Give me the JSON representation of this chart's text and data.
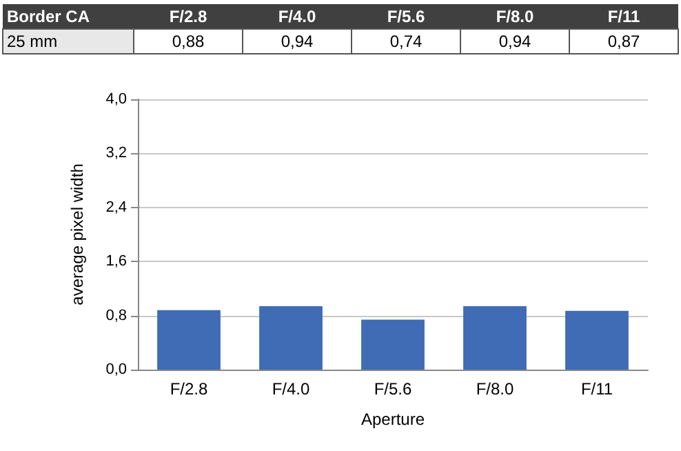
{
  "chart_data": {
    "type": "bar",
    "title": "Border CA",
    "subtitle": "25 mm",
    "xlabel": "Aperture",
    "ylabel": "average pixel width",
    "categories": [
      "F/2.8",
      "F/4.0",
      "F/5.6",
      "F/8.0",
      "F/11"
    ],
    "values": [
      0.88,
      0.94,
      0.74,
      0.94,
      0.87
    ],
    "value_labels": [
      "0,88",
      "0,94",
      "0,74",
      "0,94",
      "0,87"
    ],
    "color": "#3f6cb4",
    "ylim": [
      0,
      4
    ],
    "yticks": [
      {
        "value": 0,
        "label": "0,0"
      },
      {
        "value": 0.8,
        "label": "0,8"
      },
      {
        "value": 1.6,
        "label": "1,6"
      },
      {
        "value": 2.4,
        "label": "2,4"
      },
      {
        "value": 3.2,
        "label": "3,2"
      },
      {
        "value": 4,
        "label": "4,0"
      }
    ],
    "grid": "y"
  }
}
